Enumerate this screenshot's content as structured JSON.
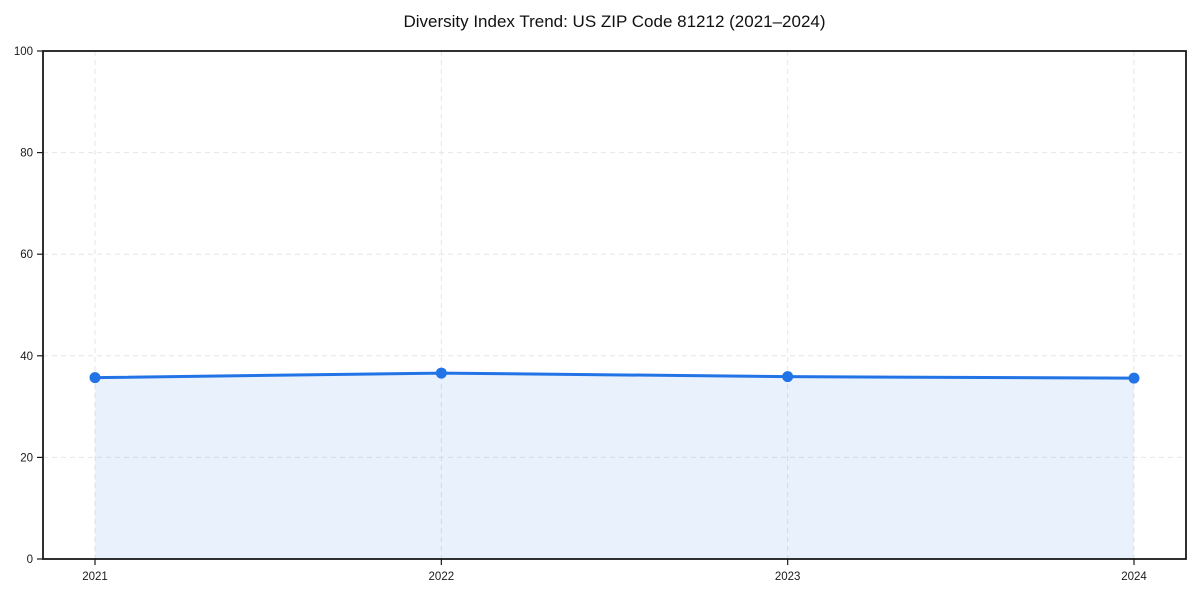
{
  "figure": {
    "background_color": "#ffffff"
  },
  "chart_data": {
    "type": "line",
    "title": "Diversity Index Trend: US ZIP Code 81212 (2021–2024)",
    "x": [
      2021,
      2022,
      2023,
      2024
    ],
    "xticks": [
      "2021",
      "2022",
      "2023",
      "2024"
    ],
    "series": [
      {
        "name": "Diversity Index",
        "values": [
          35.7,
          36.6,
          35.9,
          35.6
        ],
        "line_color": "#2273e6",
        "line_width": 3,
        "marker": "circle",
        "marker_size": 5.5,
        "fill_below": true,
        "fill_color": "#2273e6",
        "fill_opacity": 0.1
      }
    ],
    "xlabel": "",
    "ylabel": "",
    "ylim": [
      0,
      100
    ],
    "yticks": [
      0,
      20,
      40,
      60,
      80,
      100
    ],
    "grid": true,
    "grid_style": "dashed",
    "legend_position": "none"
  }
}
